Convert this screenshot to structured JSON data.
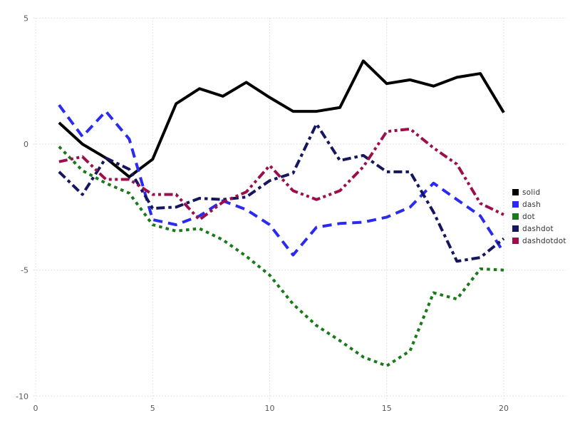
{
  "chart_data": {
    "type": "line",
    "title": "",
    "xlabel": "",
    "ylabel": "",
    "xlim": [
      0,
      20
    ],
    "ylim": [
      -10,
      5
    ],
    "x_ticks": [
      0,
      5,
      10,
      15,
      20
    ],
    "y_ticks": [
      5,
      0,
      -5,
      -10
    ],
    "grid": "dotted",
    "grid_color": "#d9d9e8",
    "tick_label_color": "#595959",
    "legend_position": "right",
    "background_color": "#ffffff",
    "x": [
      1,
      2,
      3,
      4,
      5,
      6,
      7,
      8,
      9,
      10,
      11,
      12,
      13,
      14,
      15,
      16,
      17,
      18,
      19,
      20
    ],
    "series": [
      {
        "name": "solid",
        "line_style": "solid",
        "color": "#000000",
        "values": [
          0.85,
          0.0,
          -0.55,
          -1.3,
          -0.6,
          1.6,
          2.2,
          1.9,
          2.45,
          1.85,
          1.3,
          1.3,
          1.45,
          3.3,
          2.4,
          2.55,
          2.3,
          2.65,
          2.8,
          1.25
        ]
      },
      {
        "name": "dash",
        "line_style": "dash",
        "color": "#2a2af0",
        "values": [
          1.55,
          0.3,
          1.3,
          0.2,
          -3.0,
          -3.2,
          -2.85,
          -2.25,
          -2.6,
          -3.2,
          -4.4,
          -3.3,
          -3.15,
          -3.1,
          -2.9,
          -2.5,
          -1.55,
          -2.2,
          -2.85,
          -4.3
        ]
      },
      {
        "name": "dot",
        "line_style": "dot",
        "color": "#1a7a1a",
        "values": [
          -0.1,
          -1.05,
          -1.55,
          -1.95,
          -3.2,
          -3.45,
          -3.35,
          -3.8,
          -4.45,
          -5.2,
          -6.35,
          -7.2,
          -7.8,
          -8.45,
          -8.8,
          -8.2,
          -5.9,
          -6.15,
          -4.95,
          -5.0
        ]
      },
      {
        "name": "dashdot",
        "line_style": "dashdot",
        "color": "#16165e",
        "values": [
          -1.1,
          -2.0,
          -0.55,
          -1.0,
          -2.55,
          -2.5,
          -2.15,
          -2.2,
          -2.1,
          -1.45,
          -1.15,
          0.8,
          -0.65,
          -0.45,
          -1.1,
          -1.1,
          -2.7,
          -4.65,
          -4.5,
          -3.75
        ]
      },
      {
        "name": "dashdotdot",
        "line_style": "dashdotdot",
        "color": "#9b104b",
        "values": [
          -0.7,
          -0.5,
          -1.4,
          -1.4,
          -2.0,
          -2.0,
          -3.0,
          -2.3,
          -1.9,
          -0.85,
          -1.85,
          -2.2,
          -1.85,
          -0.9,
          0.5,
          0.6,
          -0.15,
          -0.8,
          -2.35,
          -2.8
        ]
      }
    ]
  }
}
